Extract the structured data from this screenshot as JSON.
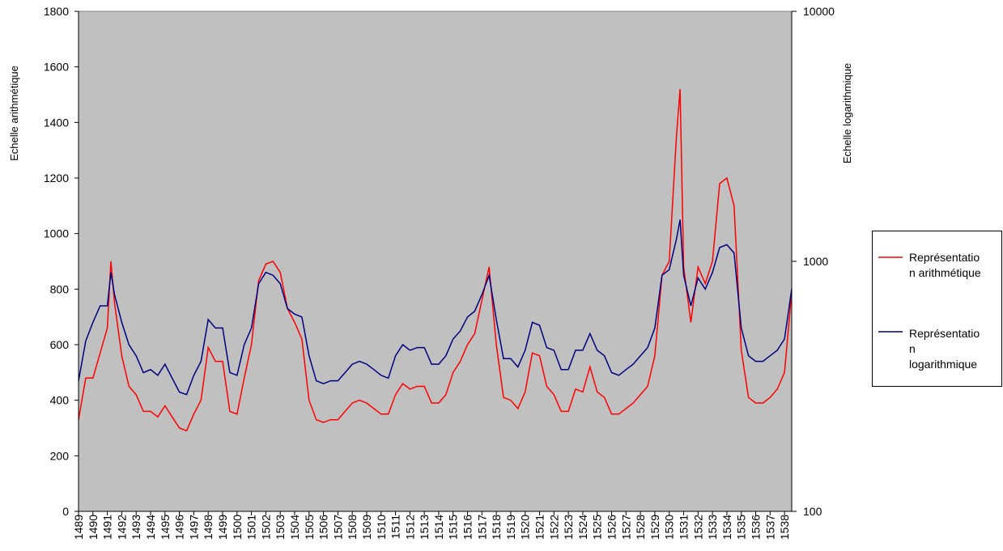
{
  "chart_data": {
    "type": "line",
    "ylabel": "Echelle arithmétique",
    "y2label": "Echelle logarithmique",
    "xlim": [
      1489,
      1538.5
    ],
    "xticks": [
      1489,
      1490,
      1491,
      1492,
      1493,
      1494,
      1495,
      1496,
      1497,
      1498,
      1499,
      1500,
      1501,
      1502,
      1503,
      1504,
      1505,
      1506,
      1507,
      1508,
      1509,
      1510,
      1511,
      1512,
      1513,
      1514,
      1515,
      1516,
      1517,
      1518,
      1519,
      1520,
      1521,
      1522,
      1523,
      1524,
      1525,
      1526,
      1527,
      1528,
      1529,
      1530,
      1531,
      1532,
      1533,
      1534,
      1535,
      1536,
      1537,
      1538
    ],
    "ylim": [
      0,
      1800
    ],
    "yticks": [
      0,
      200,
      400,
      600,
      800,
      1000,
      1200,
      1400,
      1600,
      1800
    ],
    "y2lim": [
      100,
      10000
    ],
    "y2ticks": [
      100,
      1000,
      10000
    ],
    "y2log": true,
    "background": "#c0c0c0",
    "legend": "right",
    "x": [
      1489,
      1489.5,
      1490,
      1490.5,
      1491,
      1491.25,
      1491.5,
      1492,
      1492.5,
      1493,
      1493.5,
      1494,
      1494.5,
      1495,
      1495.5,
      1496,
      1496.5,
      1497,
      1497.5,
      1498,
      1498.5,
      1499,
      1499.5,
      1500,
      1500.5,
      1501,
      1501.5,
      1502,
      1502.5,
      1503,
      1503.5,
      1504,
      1504.5,
      1505,
      1505.5,
      1506,
      1506.5,
      1507,
      1507.5,
      1508,
      1508.5,
      1509,
      1509.5,
      1510,
      1510.5,
      1511,
      1511.5,
      1512,
      1512.5,
      1513,
      1513.5,
      1514,
      1514.5,
      1515,
      1515.5,
      1516,
      1516.5,
      1517,
      1517.5,
      1518,
      1518.5,
      1519,
      1519.5,
      1520,
      1520.5,
      1521,
      1521.5,
      1522,
      1522.5,
      1523,
      1523.5,
      1524,
      1524.5,
      1525,
      1525.5,
      1526,
      1526.5,
      1527,
      1527.5,
      1528,
      1528.5,
      1529,
      1529.5,
      1530,
      1530.5,
      1530.75,
      1531,
      1531.5,
      1532,
      1532.5,
      1533,
      1533.5,
      1534,
      1534.5,
      1535,
      1535.5,
      1536,
      1536.5,
      1537,
      1537.5,
      1538,
      1538.5
    ],
    "series": [
      {
        "name": "Représentation arithmétique",
        "color": "#ff0000",
        "axis": "y",
        "values": [
          330,
          480,
          480,
          570,
          660,
          900,
          750,
          560,
          450,
          420,
          360,
          360,
          340,
          380,
          340,
          300,
          290,
          350,
          400,
          590,
          540,
          540,
          360,
          350,
          480,
          600,
          830,
          890,
          900,
          860,
          730,
          680,
          620,
          400,
          330,
          320,
          330,
          330,
          360,
          390,
          400,
          390,
          370,
          350,
          350,
          420,
          460,
          440,
          450,
          450,
          390,
          390,
          420,
          500,
          540,
          600,
          640,
          760,
          880,
          600,
          410,
          400,
          370,
          430,
          570,
          560,
          450,
          420,
          360,
          360,
          440,
          430,
          520,
          430,
          410,
          350,
          350,
          370,
          390,
          420,
          450,
          560,
          850,
          900,
          1350,
          1520,
          880,
          680,
          880,
          820,
          900,
          1180,
          1200,
          1100,
          580,
          410,
          390,
          390,
          410,
          440,
          500,
          790
        ]
      },
      {
        "name": "Représentation logarithmique",
        "color": "#000080",
        "axis": "y2",
        "values": [
          333,
          480,
          570,
          664,
          664,
          903,
          736,
          570,
          464,
          419,
          359,
          369,
          350,
          388,
          341,
          300,
          293,
          350,
          398,
          585,
          541,
          541,
          359,
          350,
          464,
          541,
          814,
          903,
          880,
          814,
          647,
          615,
          599,
          419,
          333,
          324,
          333,
          333,
          359,
          388,
          398,
          388,
          369,
          350,
          341,
          419,
          464,
          441,
          452,
          452,
          388,
          388,
          419,
          489,
          527,
          599,
          632,
          736,
          880,
          585,
          408,
          408,
          378,
          441,
          570,
          555,
          452,
          441,
          369,
          369,
          441,
          441,
          514,
          441,
          419,
          359,
          350,
          369,
          388,
          419,
          452,
          541,
          880,
          926,
          1227,
          1468,
          880,
          664,
          858,
          774,
          903,
          1136,
          1166,
          1080,
          541,
          419,
          398,
          398,
          419,
          441,
          489,
          774
        ]
      }
    ]
  }
}
